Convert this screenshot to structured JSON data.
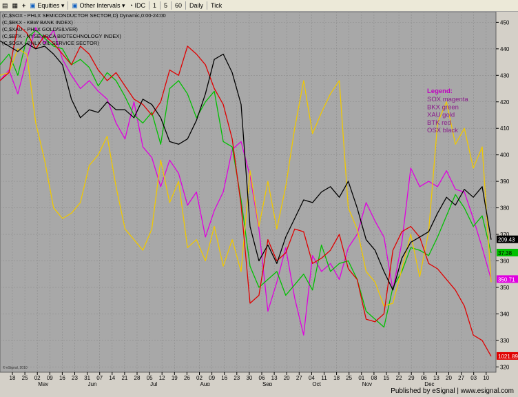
{
  "toolbar": {
    "symbol_icon": "chart-icon",
    "grid_icon": "grid-icon",
    "crosshair_icon": "plus-icon",
    "equities_label": "Equities",
    "other_intervals_label": "Other Intervals",
    "idc_label": "IDC",
    "interval_1": "1",
    "interval_5": "5",
    "interval_60": "60",
    "daily_label": "Daily",
    "tick_label": "Tick"
  },
  "footer": {
    "published": "Published by eSignal | www.esignal.com"
  },
  "chart_data": {
    "type": "line",
    "title_lines": [
      "(C,$SOX - PHLX SEMICONDUCTOR SECTOR,D) Dynamic,0:00-24:00",
      "(C,$BKX - KBW BANK INDEX)",
      "(C,$XAU - PHLX GOLD/SILVER)",
      "(C,$BTK - NYSE ARCA BIOTECHNOLOGY INDEX)",
      "(C,$OSX - PHLX OIL SERVICE SECTOR)"
    ],
    "watermark": "© eSignal, 2010",
    "legend": {
      "placement": "right",
      "title": "Legend:",
      "entries": [
        "SOX magenta",
        "BKX green",
        "XAU gold",
        "BTK red",
        "OSX black"
      ]
    },
    "ylim": [
      318,
      454
    ],
    "y_ticks": [
      320,
      330,
      340,
      350,
      360,
      370,
      380,
      390,
      400,
      410,
      420,
      430,
      440,
      450
    ],
    "x_labels": [
      "18",
      "25",
      "02",
      "09",
      "16",
      "23",
      "31",
      "07",
      "14",
      "21",
      "28",
      "05",
      "12",
      "19",
      "26",
      "02",
      "09",
      "16",
      "23",
      "30",
      "06",
      "13",
      "20",
      "27",
      "04",
      "11",
      "18",
      "25",
      "01",
      "08",
      "15",
      "22",
      "29",
      "06",
      "13",
      "20",
      "27",
      "03",
      "10"
    ],
    "month_labels": [
      "May",
      "Jun",
      "Jul",
      "Aug",
      "Sep",
      "Oct",
      "Nov",
      "Dec"
    ],
    "month_label_index": [
      2,
      6,
      11,
      15,
      20,
      24,
      28,
      33
    ],
    "grid": true,
    "series": [
      {
        "color": "#e000e0",
        "badge": "350.71",
        "values": [
          428,
          432,
          423,
          436,
          448,
          442,
          447,
          436,
          430,
          425,
          428,
          424,
          421,
          412,
          406,
          420,
          403,
          399,
          388,
          398,
          393,
          381,
          386,
          369,
          379,
          386,
          402,
          405,
          392,
          372,
          341,
          352,
          365,
          346,
          332,
          362,
          356,
          359,
          353,
          365,
          370,
          382,
          375,
          369,
          349,
          367,
          395,
          388,
          390,
          388,
          394,
          387,
          386,
          376,
          365,
          353
        ]
      },
      {
        "color": "#00c000",
        "badge": "37.38",
        "values": [
          434,
          438,
          430,
          444,
          447,
          444,
          441,
          440,
          434,
          436,
          433,
          426,
          431,
          428,
          422,
          415,
          412,
          416,
          404,
          425,
          428,
          423,
          414,
          420,
          424,
          405,
          403,
          383,
          358,
          350,
          353,
          356,
          347,
          351,
          355,
          349,
          366,
          356,
          359,
          360,
          353,
          341,
          338,
          335,
          350,
          356,
          365,
          364,
          362,
          369,
          377,
          385,
          380,
          373,
          377,
          363
        ]
      },
      {
        "color": "#f0c800",
        "badge": "",
        "values": [
          430,
          431,
          440,
          438,
          412,
          398,
          380,
          376,
          378,
          382,
          396,
          400,
          407,
          388,
          372,
          368,
          364,
          372,
          398,
          382,
          390,
          365,
          368,
          360,
          373,
          358,
          368,
          356,
          394,
          373,
          390,
          372,
          388,
          410,
          428,
          408,
          416,
          423,
          428,
          380,
          372,
          356,
          352,
          343,
          344,
          357,
          370,
          354,
          371,
          412,
          420,
          404,
          410,
          395,
          403,
          352
        ]
      },
      {
        "color": "#e00000",
        "badge": "1021.89",
        "values": [
          428,
          431,
          449,
          446,
          440,
          445,
          442,
          438,
          434,
          441,
          438,
          432,
          428,
          431,
          426,
          421,
          419,
          415,
          420,
          432,
          430,
          441,
          438,
          434,
          425,
          419,
          406,
          381,
          344,
          347,
          368,
          360,
          363,
          372,
          371,
          359,
          361,
          364,
          370,
          357,
          353,
          338,
          337,
          340,
          364,
          371,
          373,
          369,
          359,
          357,
          353,
          349,
          343,
          332,
          330,
          324
        ]
      },
      {
        "color": "#000000",
        "badge": "209.43",
        "values": [
          443,
          441,
          439,
          442,
          440,
          441,
          438,
          434,
          421,
          414,
          417,
          416,
          420,
          417,
          417,
          414,
          421,
          419,
          414,
          405,
          404,
          406,
          413,
          423,
          436,
          438,
          431,
          419,
          373,
          360,
          366,
          359,
          369,
          376,
          383,
          382,
          386,
          388,
          384,
          390,
          380,
          368,
          364,
          356,
          349,
          361,
          367,
          369,
          371,
          378,
          384,
          381,
          387,
          384,
          388,
          368
        ]
      }
    ]
  }
}
